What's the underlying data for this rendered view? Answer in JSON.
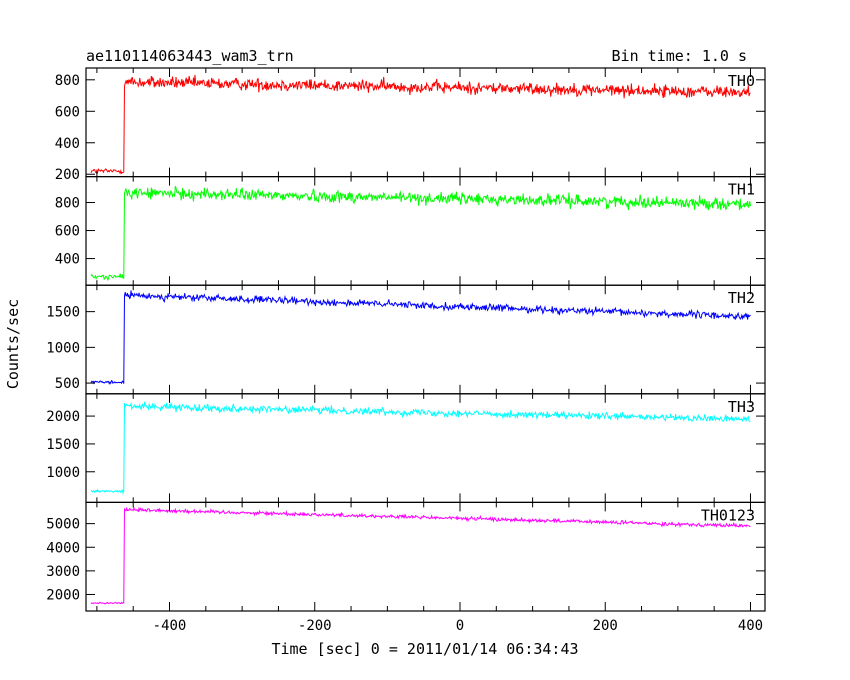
{
  "chart_data": {
    "type": "line",
    "title": "ae110114063443_wam3_trn",
    "subtitle": "Bin time: 1.0 s",
    "xlabel": "Time [sec] 0 = 2011/01/14 06:34:43",
    "ylabel": "Counts/sec",
    "xlim": [
      -515,
      420
    ],
    "xticks": [
      -400,
      -200,
      0,
      200,
      400
    ],
    "trigger_x": -462,
    "grid": false,
    "panels": [
      {
        "name": "TH0",
        "color": "#ff0000",
        "ylim": [
          185,
          875
        ],
        "yticks": [
          200,
          400,
          600,
          800
        ],
        "pre_level": 220,
        "noise_pre": 12,
        "start_level": 785,
        "end_level": 720,
        "noise": 28
      },
      {
        "name": "TH1",
        "color": "#00ff00",
        "ylim": [
          210,
          985
        ],
        "yticks": [
          400,
          600,
          800
        ],
        "pre_level": 270,
        "noise_pre": 12,
        "start_level": 870,
        "end_level": 790,
        "noise": 30
      },
      {
        "name": "TH2",
        "color": "#0000ff",
        "ylim": [
          350,
          1870
        ],
        "yticks": [
          500,
          1000,
          1500
        ],
        "pre_level": 510,
        "noise_pre": 15,
        "start_level": 1730,
        "end_level": 1430,
        "noise": 35
      },
      {
        "name": "TH3",
        "color": "#00ffff",
        "ylim": [
          450,
          2400
        ],
        "yticks": [
          1000,
          1500,
          2000
        ],
        "pre_level": 650,
        "noise_pre": 15,
        "start_level": 2180,
        "end_level": 1940,
        "noise": 45
      },
      {
        "name": "TH0123",
        "color": "#ff00ff",
        "ylim": [
          1300,
          5900
        ],
        "yticks": [
          2000,
          3000,
          4000,
          5000
        ],
        "pre_level": 1640,
        "noise_pre": 25,
        "start_level": 5600,
        "end_level": 4900,
        "noise": 55
      }
    ]
  }
}
